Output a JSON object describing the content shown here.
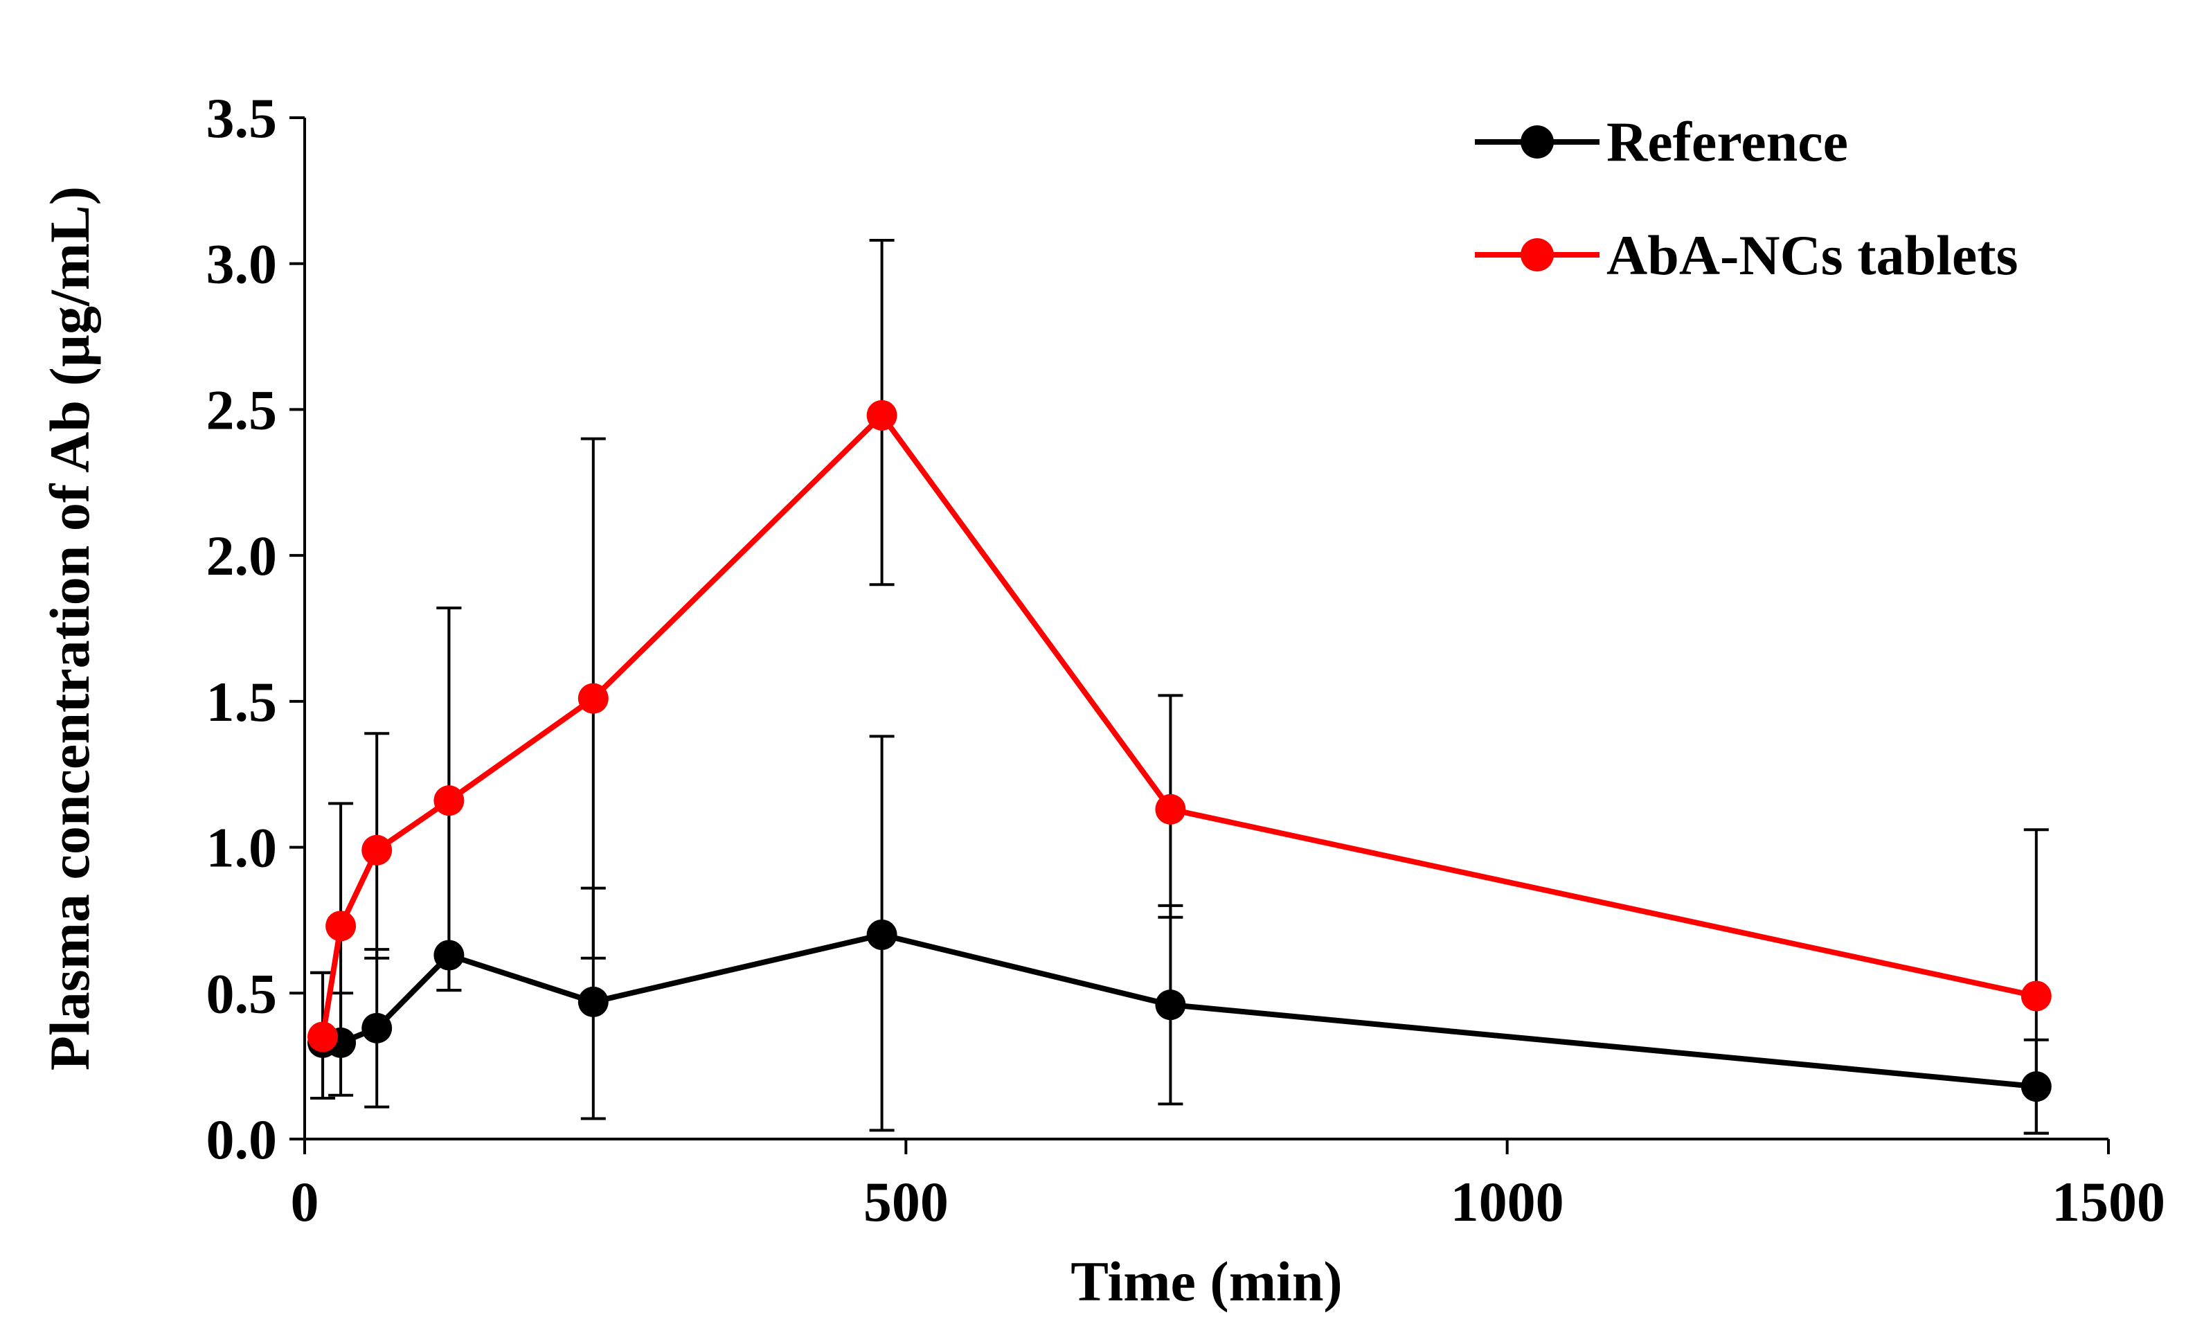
{
  "chart_data": {
    "type": "line",
    "title": "",
    "xlabel": "Time (min)",
    "ylabel": "Plasma concentration of Ab (µg/mL)",
    "xlim": [
      0,
      1500
    ],
    "ylim": [
      0,
      3.5
    ],
    "xticks": [
      0,
      500,
      1000,
      1500
    ],
    "xtick_labels": [
      "0",
      "500",
      "1000",
      "1500"
    ],
    "yticks": [
      0,
      0.5,
      1,
      1.5,
      2,
      2.5,
      3,
      3.5
    ],
    "ytick_labels": [
      "0.0",
      "0.5",
      "1.0",
      "1.5",
      "2.0",
      "2.5",
      "3.0",
      "3.5"
    ],
    "grid": false,
    "legend_position": "top-right",
    "series": [
      {
        "name": "Reference",
        "color": "#000000",
        "x": [
          15,
          30,
          60,
          120,
          240,
          480,
          720,
          1440
        ],
        "y": [
          0.33,
          0.33,
          0.38,
          0.63,
          0.47,
          0.7,
          0.46,
          0.18
        ],
        "err_high": [
          0.57,
          0.5,
          0.65,
          1.82,
          0.86,
          1.38,
          0.8,
          0.34
        ],
        "err_low": [
          0.14,
          0.15,
          0.11,
          0.51,
          0.07,
          0.03,
          0.12,
          0.02
        ]
      },
      {
        "name": "AbA-NCs tablets",
        "color": "#ff0000",
        "x": [
          15,
          30,
          60,
          120,
          240,
          480,
          720,
          1440
        ],
        "y": [
          0.35,
          0.73,
          0.99,
          1.16,
          1.51,
          2.48,
          1.13,
          0.49
        ],
        "err_high": [
          0.57,
          1.15,
          1.39,
          1.82,
          2.4,
          3.08,
          1.52,
          1.06
        ],
        "err_low": [
          0.14,
          0.31,
          0.62,
          0.51,
          0.62,
          1.9,
          0.76,
          0.02
        ]
      }
    ]
  }
}
